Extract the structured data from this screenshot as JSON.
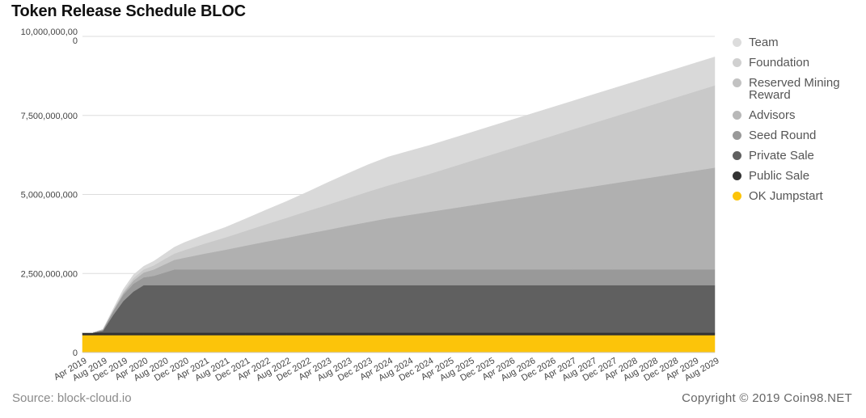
{
  "header": {
    "title": "Token Release Schedule BLOC"
  },
  "footer": {
    "source": "Source: block-cloud.io",
    "copyright": "Copyright © 2019 Coin98.NET"
  },
  "chart_data": {
    "type": "area",
    "stacked": true,
    "title": "Token Release Schedule BLOC",
    "xlabel": "",
    "ylabel": "",
    "ylim": [
      0,
      10000000000
    ],
    "y_ticks": [
      0,
      2500000000,
      5000000000,
      7500000000,
      10000000000
    ],
    "y_tick_labels": [
      "0",
      "2,500,000,000",
      "5,000,000,000",
      "7,500,000,000",
      "10,000,000,00\n0"
    ],
    "x_tick_labels": [
      "Apr 2019",
      "Aug 2019",
      "Dec 2019",
      "Apr 2020",
      "Aug 2020",
      "Dec 2020",
      "Apr 2021",
      "Aug 2021",
      "Dec 2021",
      "Apr 2022",
      "Aug 2022",
      "Dec 2022",
      "Apr 2023",
      "Aug 2023",
      "Dec 2023",
      "Apr 2024",
      "Aug 2024",
      "Dec 2024",
      "Apr 2025",
      "Aug 2025",
      "Dec 2025",
      "Apr 2026",
      "Aug 2026",
      "Dec 2026",
      "Apr 2027",
      "Aug 2027",
      "Dec 2027",
      "Apr 2028",
      "Aug 2028",
      "Dec 2028",
      "Apr 2029",
      "Aug 2029"
    ],
    "x": [
      "Apr 2019",
      "Jun 2019",
      "Aug 2019",
      "Oct 2019",
      "Dec 2019",
      "Feb 2020",
      "Apr 2020",
      "Jun 2020",
      "Aug 2020",
      "Oct 2020",
      "Dec 2020",
      "Apr 2021",
      "Aug 2021",
      "Dec 2021",
      "Apr 2022",
      "Aug 2022",
      "Dec 2022",
      "Apr 2023",
      "Aug 2023",
      "Dec 2023",
      "Apr 2024",
      "Aug 2024",
      "Dec 2024",
      "Apr 2025",
      "Aug 2025",
      "Dec 2025",
      "Apr 2026",
      "Aug 2026",
      "Dec 2026",
      "Apr 2027",
      "Aug 2027",
      "Dec 2027",
      "Apr 2028",
      "Aug 2028",
      "Dec 2028",
      "Apr 2029",
      "Aug 2029"
    ],
    "legend_position": "right",
    "grid": true,
    "series": [
      {
        "name": "OK Jumpstart",
        "color": "#fcc40a",
        "values": [
          550000000,
          550000000,
          550000000,
          550000000,
          550000000,
          550000000,
          550000000,
          550000000,
          550000000,
          550000000,
          550000000,
          550000000,
          550000000,
          550000000,
          550000000,
          550000000,
          550000000,
          550000000,
          550000000,
          550000000,
          550000000,
          550000000,
          550000000,
          550000000,
          550000000,
          550000000,
          550000000,
          550000000,
          550000000,
          550000000,
          550000000,
          550000000,
          550000000,
          550000000,
          550000000,
          550000000,
          550000000
        ]
      },
      {
        "name": "Public Sale",
        "color": "#333333",
        "values": [
          80000000,
          80000000,
          80000000,
          80000000,
          80000000,
          80000000,
          80000000,
          80000000,
          80000000,
          80000000,
          80000000,
          80000000,
          80000000,
          80000000,
          80000000,
          80000000,
          80000000,
          80000000,
          80000000,
          80000000,
          80000000,
          80000000,
          80000000,
          80000000,
          80000000,
          80000000,
          80000000,
          80000000,
          80000000,
          80000000,
          80000000,
          80000000,
          80000000,
          80000000,
          80000000,
          80000000,
          80000000
        ]
      },
      {
        "name": "Private Sale",
        "color": "#606060",
        "values": [
          0,
          0,
          50000000,
          550000000,
          1000000000,
          1300000000,
          1500000000,
          1500000000,
          1500000000,
          1500000000,
          1500000000,
          1500000000,
          1500000000,
          1500000000,
          1500000000,
          1500000000,
          1500000000,
          1500000000,
          1500000000,
          1500000000,
          1500000000,
          1500000000,
          1500000000,
          1500000000,
          1500000000,
          1500000000,
          1500000000,
          1500000000,
          1500000000,
          1500000000,
          1500000000,
          1500000000,
          1500000000,
          1500000000,
          1500000000,
          1500000000,
          1500000000
        ]
      },
      {
        "name": "Seed Round",
        "color": "#999999",
        "values": [
          0,
          0,
          50000000,
          120000000,
          200000000,
          250000000,
          250000000,
          300000000,
          400000000,
          500000000,
          500000000,
          500000000,
          500000000,
          500000000,
          500000000,
          500000000,
          500000000,
          500000000,
          500000000,
          500000000,
          500000000,
          500000000,
          500000000,
          500000000,
          500000000,
          500000000,
          500000000,
          500000000,
          500000000,
          500000000,
          500000000,
          500000000,
          500000000,
          500000000,
          500000000,
          500000000,
          500000000
        ]
      },
      {
        "name": "Advisors",
        "color": "#b5b5b5",
        "values": [
          0,
          0,
          0,
          0,
          0,
          0,
          0,
          0,
          0,
          0,
          0,
          0,
          0,
          0,
          0,
          0,
          0,
          0,
          0,
          0,
          0,
          0,
          0,
          0,
          0,
          0,
          0,
          0,
          0,
          0,
          0,
          0,
          0,
          0,
          0,
          0,
          0
        ]
      },
      {
        "name": "Reserved Mining Reward",
        "color": "#b0b0b0",
        "values": [
          0,
          0,
          0,
          20000000,
          50000000,
          100000000,
          150000000,
          200000000,
          250000000,
          300000000,
          370000000,
          500000000,
          620000000,
          750000000,
          880000000,
          1000000000,
          1130000000,
          1250000000,
          1380000000,
          1500000000,
          1620000000,
          1720000000,
          1820000000,
          1920000000,
          2020000000,
          2120000000,
          2220000000,
          2320000000,
          2420000000,
          2520000000,
          2620000000,
          2720000000,
          2820000000,
          2920000000,
          3020000000,
          3120000000,
          3220000000
        ]
      },
      {
        "name": "Foundation",
        "color": "#c9c9c9",
        "values": [
          0,
          0,
          0,
          20000000,
          50000000,
          80000000,
          100000000,
          130000000,
          170000000,
          200000000,
          240000000,
          320000000,
          390000000,
          470000000,
          550000000,
          630000000,
          710000000,
          790000000,
          870000000,
          960000000,
          1040000000,
          1120000000,
          1200000000,
          1300000000,
          1400000000,
          1500000000,
          1600000000,
          1700000000,
          1800000000,
          1900000000,
          2000000000,
          2100000000,
          2200000000,
          2300000000,
          2400000000,
          2500000000,
          2600000000
        ]
      },
      {
        "name": "Team",
        "color": "#d9d9d9",
        "values": [
          0,
          0,
          0,
          30000000,
          70000000,
          100000000,
          100000000,
          130000000,
          160000000,
          200000000,
          240000000,
          280000000,
          320000000,
          380000000,
          450000000,
          520000000,
          600000000,
          700000000,
          780000000,
          850000000,
          900000000,
          900000000,
          900000000,
          900000000,
          900000000,
          900000000,
          900000000,
          900000000,
          900000000,
          900000000,
          900000000,
          900000000,
          900000000,
          900000000,
          900000000,
          900000000,
          900000000
        ]
      }
    ]
  },
  "legend": {
    "items": [
      {
        "name": "Team",
        "color": "#d9d9d9"
      },
      {
        "name": "Foundation",
        "color": "#c9c9c9"
      },
      {
        "name": "Reserved Mining Reward",
        "color": "#b5b5b5"
      },
      {
        "name": "Advisors",
        "color": "#b5b5b5"
      },
      {
        "name": "Seed Round",
        "color": "#999999"
      },
      {
        "name": "Private Sale",
        "color": "#606060"
      },
      {
        "name": "Public Sale",
        "color": "#333333"
      },
      {
        "name": "OK Jumpstart",
        "color": "#fcc40a"
      }
    ]
  }
}
